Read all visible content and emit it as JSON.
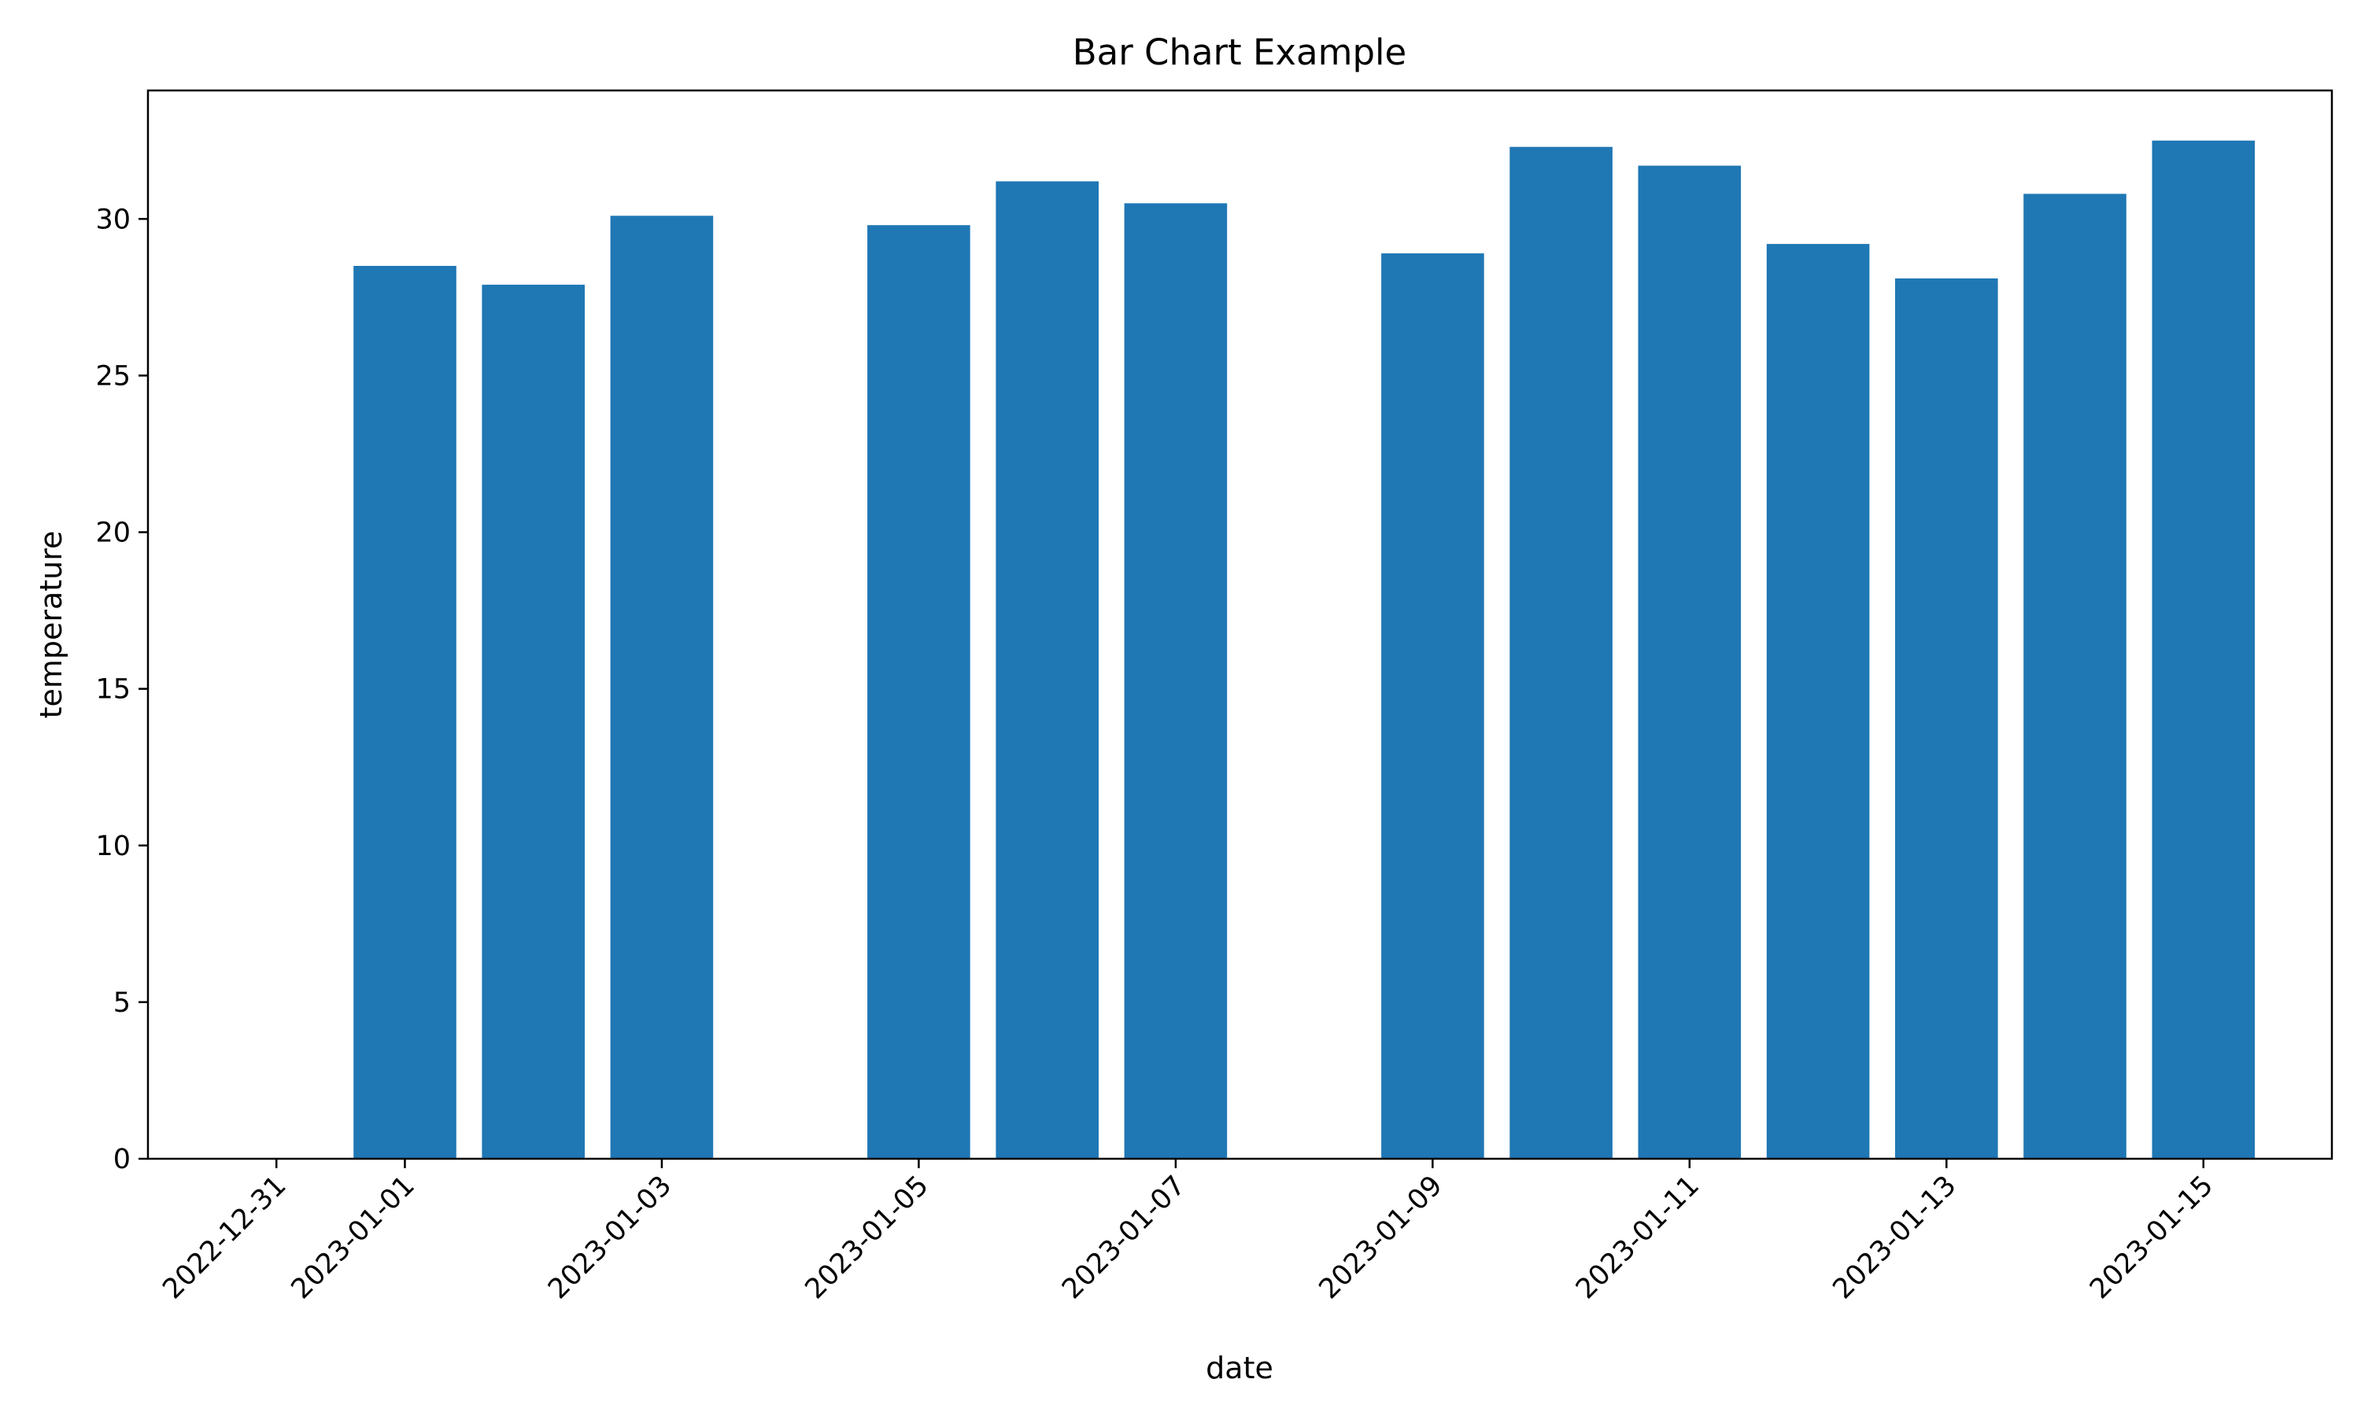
{
  "chart_data": {
    "type": "bar",
    "title": "Bar Chart Example",
    "xlabel": "date",
    "ylabel": "temperature",
    "x": [
      "2023-01-01",
      "2023-01-02",
      "2023-01-03",
      "2023-01-05",
      "2023-01-06",
      "2023-01-07",
      "2023-01-09",
      "2023-01-10",
      "2023-01-11",
      "2023-01-12",
      "2023-01-13",
      "2023-01-14",
      "2023-01-15"
    ],
    "values": [
      28.5,
      27.9,
      30.1,
      29.8,
      31.2,
      30.5,
      28.9,
      32.3,
      31.7,
      29.2,
      28.1,
      30.8,
      32.5
    ],
    "xlim": [
      "2022-12-30",
      "2023-01-16"
    ],
    "ylim": [
      0,
      34.1
    ],
    "xticks": [
      "2022-12-31",
      "2023-01-01",
      "2023-01-03",
      "2023-01-05",
      "2023-01-07",
      "2023-01-09",
      "2023-01-11",
      "2023-01-13",
      "2023-01-15"
    ],
    "yticks": [
      0,
      5,
      10,
      15,
      20,
      25,
      30
    ],
    "bar_color": "#1f77b4",
    "grid": false,
    "legend": "none"
  }
}
